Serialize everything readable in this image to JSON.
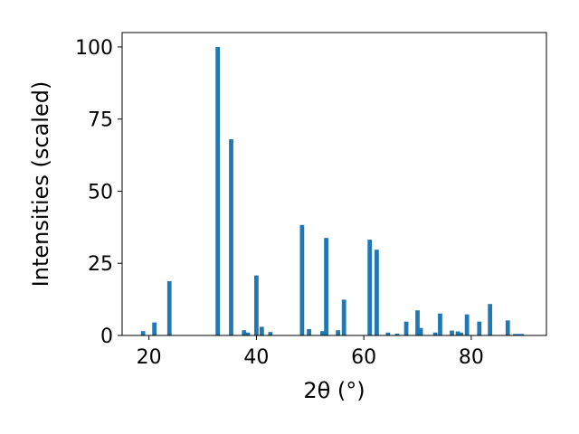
{
  "chart_data": {
    "type": "bar",
    "title": "",
    "xlabel": "2θ (°)",
    "ylabel": "Intensities (scaled)",
    "xlim": [
      15,
      94
    ],
    "ylim": [
      0,
      105
    ],
    "xticks": [
      20,
      40,
      60,
      80
    ],
    "yticks": [
      0,
      25,
      50,
      75,
      100
    ],
    "grid": false,
    "bar_color": "#1f77b4",
    "bar_width": 0.8,
    "x": [
      18.9,
      21.0,
      23.8,
      32.8,
      35.3,
      37.7,
      38.4,
      40.0,
      41.0,
      42.6,
      48.5,
      49.8,
      52.3,
      53.0,
      55.2,
      56.3,
      61.1,
      62.4,
      64.5,
      66.2,
      67.9,
      70.0,
      70.6,
      73.3,
      74.2,
      76.4,
      77.5,
      78.1,
      79.2,
      81.5,
      83.5,
      86.8,
      88.2,
      88.8,
      89.4
    ],
    "values": [
      1.5,
      4.5,
      18.8,
      100.0,
      68.0,
      1.8,
      1.0,
      20.8,
      3.0,
      1.2,
      38.3,
      2.2,
      1.5,
      33.8,
      1.8,
      12.4,
      33.2,
      29.7,
      1.0,
      0.6,
      4.8,
      8.7,
      2.6,
      1.0,
      7.6,
      1.7,
      1.4,
      1.0,
      7.3,
      4.8,
      10.9,
      5.2,
      0.5,
      0.5,
      0.5
    ]
  }
}
